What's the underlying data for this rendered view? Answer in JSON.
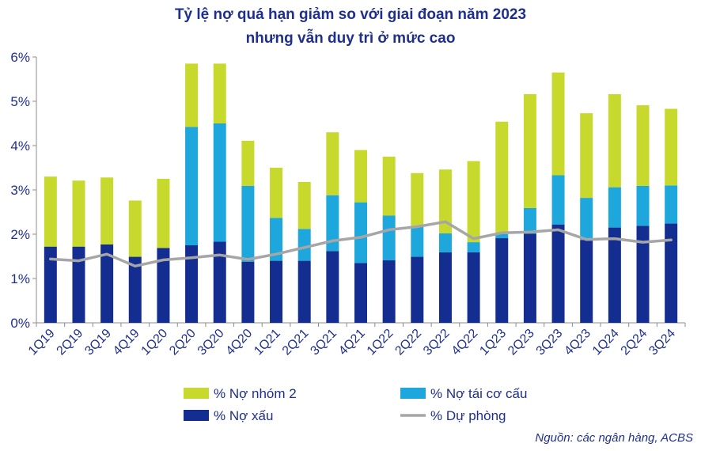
{
  "colors": {
    "nhom2": "#c6d92c",
    "tai_co_cau": "#1ea7dc",
    "no_xau": "#132d91",
    "du_phong": "#a6a6a6",
    "text": "#1f2f8c",
    "axis": "#8c8c8c"
  },
  "chart_data": {
    "type": "bar",
    "title": "Tỷ lệ nợ quá hạn giảm so với giai đoạn năm 2023",
    "subtitle": "nhưng vẫn duy trì ở mức cao",
    "source": "Nguồn: các ngân hàng, ACBS",
    "stacked": true,
    "categories": [
      "1Q19",
      "2Q19",
      "3Q19",
      "4Q19",
      "1Q20",
      "2Q20",
      "3Q20",
      "4Q20",
      "1Q21",
      "2Q21",
      "3Q21",
      "4Q21",
      "1Q22",
      "2Q22",
      "3Q22",
      "4Q22",
      "1Q23",
      "2Q23",
      "3Q23",
      "4Q23",
      "1Q24",
      "2Q24",
      "3Q24"
    ],
    "ylim": [
      0,
      6
    ],
    "yticks": [
      0,
      1,
      2,
      3,
      4,
      5,
      6
    ],
    "ytick_labels": [
      "0%",
      "1%",
      "2%",
      "3%",
      "4%",
      "5%",
      "6%"
    ],
    "legend_position": "bottom",
    "series": [
      {
        "name": "% Nợ xấu",
        "key": "no_xau",
        "kind": "bar",
        "values": [
          1.72,
          1.72,
          1.77,
          1.49,
          1.69,
          1.75,
          1.83,
          1.38,
          1.4,
          1.4,
          1.62,
          1.35,
          1.41,
          1.49,
          1.59,
          1.59,
          1.91,
          2.01,
          2.22,
          1.87,
          2.15,
          2.19,
          2.24
        ]
      },
      {
        "name": "% Nợ tái cơ cấu",
        "key": "tai_co_cau",
        "kind": "bar",
        "values": [
          0.0,
          0.0,
          0.0,
          0.0,
          0.0,
          2.67,
          2.67,
          1.71,
          0.97,
          0.72,
          1.26,
          1.37,
          1.01,
          0.7,
          0.43,
          0.23,
          0.09,
          0.58,
          1.11,
          0.95,
          0.91,
          0.9,
          0.86
        ]
      },
      {
        "name": "% Nợ nhóm 2",
        "key": "nhom2",
        "kind": "bar",
        "values": [
          1.58,
          1.49,
          1.51,
          1.27,
          1.56,
          1.43,
          1.35,
          1.02,
          1.13,
          1.06,
          1.42,
          1.18,
          1.33,
          1.19,
          1.44,
          1.83,
          2.54,
          2.57,
          2.32,
          1.91,
          2.1,
          1.82,
          1.73
        ]
      },
      {
        "name": "% Dự phòng",
        "key": "du_phong",
        "kind": "line",
        "values": [
          1.44,
          1.4,
          1.55,
          1.28,
          1.42,
          1.47,
          1.53,
          1.43,
          1.55,
          1.7,
          1.85,
          1.93,
          2.1,
          2.17,
          2.28,
          1.9,
          2.03,
          2.05,
          2.1,
          1.88,
          1.9,
          1.82,
          1.87
        ]
      }
    ],
    "legend": [
      {
        "label": "% Nợ nhóm 2",
        "key": "nhom2",
        "kind": "bar"
      },
      {
        "label": "% Nợ tái cơ cấu",
        "key": "tai_co_cau",
        "kind": "bar"
      },
      {
        "label": "% Nợ xấu",
        "key": "no_xau",
        "kind": "bar"
      },
      {
        "label": "% Dự phòng",
        "key": "du_phong",
        "kind": "line"
      }
    ]
  }
}
